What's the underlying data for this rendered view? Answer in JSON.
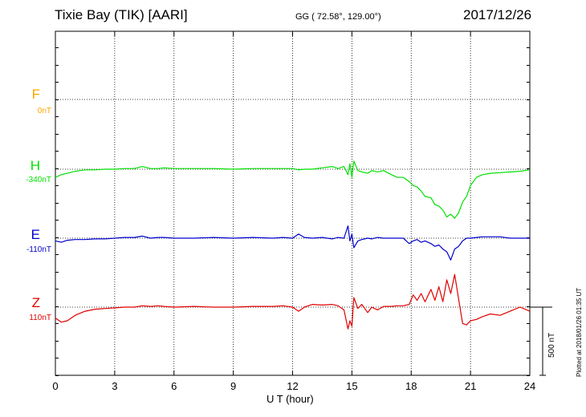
{
  "header": {
    "title": "Tixie Bay (TIK)  [AARI]",
    "coords": "GG ( 72.58°, 129.00°)",
    "date": "2017/12/26"
  },
  "footer": {
    "plotted": "Plotted at 2018/01/26 01:35 UT"
  },
  "chart_data": {
    "type": "line",
    "xlabel": "U T (hour)",
    "xlim": [
      0,
      24
    ],
    "xticks": [
      0,
      3,
      6,
      9,
      12,
      15,
      18,
      21,
      24
    ],
    "xtick_labels": [
      "0",
      "3",
      "6",
      "9",
      "12",
      "15",
      "18",
      "21",
      "24"
    ],
    "grid": true,
    "scale_bar": {
      "label": "500 nT",
      "value_nT": 500
    },
    "components": [
      {
        "name": "F",
        "baseline_label": "0nT",
        "color": "#FFA500"
      },
      {
        "name": "H",
        "baseline_label": "-340nT",
        "color": "#00E000"
      },
      {
        "name": "E",
        "baseline_label": "-110nT",
        "color": "#0000CC"
      },
      {
        "name": "Z",
        "baseline_label": "110nT",
        "color": "#E00000"
      }
    ],
    "series": [
      {
        "name": "H",
        "color": "#00E000",
        "x": [
          0,
          0.3,
          0.6,
          1.0,
          1.5,
          2.0,
          2.5,
          3.0,
          3.5,
          4.0,
          4.4,
          4.8,
          5.2,
          5.5,
          6.0,
          7.0,
          8.0,
          9.0,
          10.0,
          11.0,
          11.5,
          12.0,
          12.3,
          12.6,
          13.0,
          13.5,
          14.0,
          14.3,
          14.6,
          14.8,
          14.9,
          15.0,
          15.1,
          15.3,
          15.5,
          15.8,
          16.0,
          16.3,
          16.6,
          17.0,
          17.3,
          17.6,
          17.9,
          18.1,
          18.3,
          18.5,
          18.7,
          19.0,
          19.2,
          19.4,
          19.6,
          19.8,
          20.0,
          20.2,
          20.4,
          20.6,
          20.8,
          21.0,
          21.3,
          21.6,
          22.0,
          22.5,
          23.0,
          23.5,
          24.0
        ],
        "y": [
          -60,
          -40,
          -30,
          -15,
          -5,
          -5,
          0,
          0,
          5,
          5,
          20,
          5,
          5,
          10,
          5,
          5,
          5,
          0,
          5,
          5,
          5,
          5,
          -5,
          0,
          0,
          10,
          20,
          5,
          20,
          -40,
          40,
          -60,
          60,
          -10,
          -20,
          -30,
          -10,
          -20,
          -10,
          -40,
          -60,
          -60,
          -90,
          -120,
          -130,
          -160,
          -200,
          -210,
          -260,
          -270,
          -300,
          -350,
          -330,
          -360,
          -320,
          -240,
          -200,
          -120,
          -60,
          -40,
          -30,
          -25,
          -20,
          -15,
          -5
        ]
      },
      {
        "name": "E",
        "color": "#0000CC",
        "x": [
          0,
          0.3,
          0.6,
          1.0,
          1.5,
          2.0,
          2.5,
          3.0,
          3.5,
          4.0,
          4.4,
          4.8,
          5.2,
          5.5,
          6.0,
          7.0,
          8.0,
          9.0,
          10.0,
          11.0,
          11.5,
          12.0,
          12.3,
          12.6,
          13.0,
          13.5,
          14.0,
          14.3,
          14.6,
          14.8,
          14.9,
          15.0,
          15.1,
          15.3,
          15.5,
          15.8,
          16.0,
          16.3,
          16.6,
          17.0,
          17.3,
          17.6,
          17.9,
          18.1,
          18.3,
          18.5,
          18.7,
          19.0,
          19.2,
          19.4,
          19.6,
          19.8,
          20.0,
          20.2,
          20.4,
          20.6,
          20.8,
          21.0,
          21.3,
          21.6,
          22.0,
          22.5,
          23.0,
          23.5,
          24.0
        ],
        "y": [
          -20,
          -30,
          -15,
          -10,
          -10,
          -5,
          -5,
          0,
          5,
          5,
          15,
          0,
          5,
          5,
          0,
          0,
          5,
          0,
          5,
          0,
          5,
          0,
          30,
          5,
          0,
          5,
          -5,
          5,
          0,
          90,
          -20,
          30,
          -70,
          -20,
          -10,
          0,
          -5,
          5,
          0,
          0,
          0,
          0,
          -40,
          -20,
          -10,
          -30,
          -20,
          -40,
          -60,
          -50,
          -80,
          -100,
          -160,
          -80,
          -60,
          -20,
          0,
          0,
          5,
          10,
          10,
          10,
          0,
          0,
          0
        ]
      },
      {
        "name": "Z",
        "color": "#E00000",
        "x": [
          0,
          0.3,
          0.6,
          1.0,
          1.5,
          2.0,
          2.5,
          3.0,
          3.5,
          4.0,
          4.4,
          4.8,
          5.2,
          5.5,
          6.0,
          7.0,
          8.0,
          9.0,
          10.0,
          11.0,
          11.5,
          12.0,
          12.3,
          12.6,
          13.0,
          13.5,
          14.0,
          14.3,
          14.6,
          14.8,
          14.9,
          15.0,
          15.1,
          15.3,
          15.5,
          15.8,
          16.0,
          16.3,
          16.6,
          17.0,
          17.3,
          17.6,
          17.9,
          18.1,
          18.3,
          18.5,
          18.7,
          19.0,
          19.2,
          19.4,
          19.6,
          19.8,
          20.0,
          20.2,
          20.4,
          20.6,
          20.8,
          21.0,
          21.3,
          21.6,
          22.0,
          22.5,
          23.0,
          23.5,
          24.0
        ],
        "y": [
          -80,
          -110,
          -100,
          -60,
          -30,
          -15,
          -10,
          -5,
          0,
          0,
          10,
          5,
          10,
          5,
          0,
          5,
          0,
          0,
          5,
          5,
          10,
          0,
          -30,
          0,
          20,
          15,
          20,
          10,
          -20,
          -160,
          -100,
          -140,
          70,
          -10,
          20,
          -40,
          0,
          -20,
          5,
          5,
          10,
          10,
          20,
          90,
          50,
          100,
          40,
          130,
          50,
          150,
          40,
          200,
          100,
          240,
          60,
          -120,
          -130,
          -100,
          -90,
          -70,
          -50,
          -60,
          -30,
          0,
          -30
        ]
      }
    ]
  }
}
